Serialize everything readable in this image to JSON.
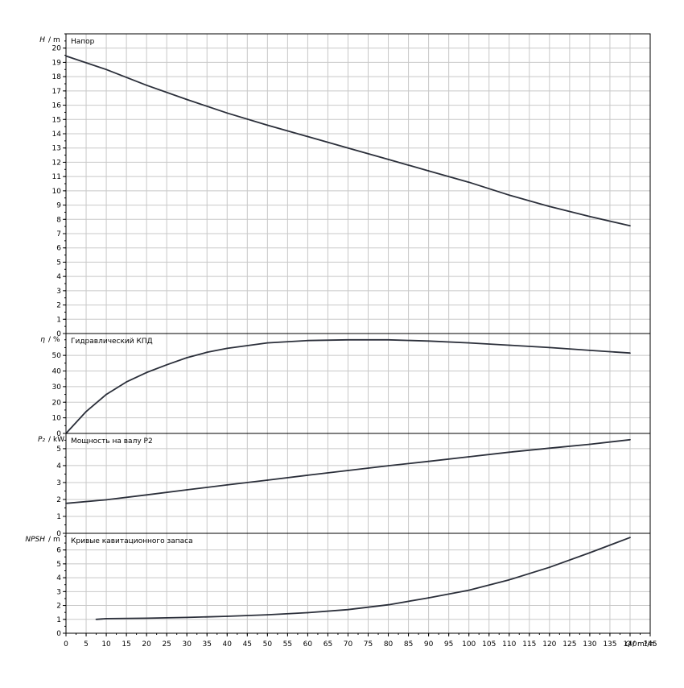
{
  "chart_data": [
    {
      "type": "line",
      "title": "Напор",
      "ylabel_var": "H",
      "ylabel_unit": "m",
      "xlim": [
        0,
        145
      ],
      "ylim": [
        0,
        21
      ],
      "yticks": [
        0,
        1,
        2,
        3,
        4,
        5,
        6,
        7,
        8,
        9,
        10,
        11,
        12,
        13,
        14,
        15,
        16,
        17,
        18,
        19,
        20
      ],
      "grid": true,
      "series": [
        {
          "x": [
            0,
            10,
            20,
            30,
            40,
            50,
            60,
            70,
            80,
            90,
            100,
            110,
            120,
            130,
            140
          ],
          "values": [
            19.45,
            18.5,
            17.4,
            16.4,
            15.45,
            14.6,
            13.8,
            13.0,
            12.2,
            11.4,
            10.6,
            9.7,
            8.9,
            8.2,
            7.55
          ]
        }
      ]
    },
    {
      "type": "line",
      "title": "Гидравлический КПД",
      "ylabel_var": "η",
      "ylabel_unit": "%",
      "xlim": [
        0,
        145
      ],
      "ylim": [
        0,
        64
      ],
      "yticks": [
        0,
        10,
        20,
        30,
        40,
        50
      ],
      "grid": true,
      "series": [
        {
          "x": [
            0,
            5,
            10,
            15,
            20,
            25,
            30,
            35,
            40,
            50,
            60,
            70,
            80,
            90,
            100,
            110,
            120,
            130,
            140
          ],
          "values": [
            0,
            14,
            25,
            33,
            39,
            44,
            48.5,
            52,
            54.5,
            58,
            59.5,
            60,
            60,
            59.2,
            58,
            56.5,
            55,
            53.2,
            51.5
          ]
        }
      ]
    },
    {
      "type": "line",
      "title": "Мощность на валу P2",
      "ylabel_var": "P₂",
      "ylabel_unit": "kW",
      "xlim": [
        0,
        145
      ],
      "ylim": [
        0,
        5.9
      ],
      "yticks": [
        0,
        1,
        2,
        3,
        4,
        5
      ],
      "grid": true,
      "series": [
        {
          "x": [
            0,
            10,
            20,
            30,
            40,
            50,
            60,
            70,
            80,
            90,
            100,
            110,
            120,
            130,
            140
          ],
          "values": [
            1.77,
            1.98,
            2.27,
            2.57,
            2.86,
            3.14,
            3.43,
            3.71,
            3.99,
            4.25,
            4.52,
            4.79,
            5.03,
            5.26,
            5.53
          ]
        }
      ]
    },
    {
      "type": "line",
      "title": "Кривые кавитационного запаса",
      "ylabel_var": "NPSH",
      "ylabel_unit": "m",
      "xlim": [
        0,
        145
      ],
      "ylim": [
        0,
        7.2
      ],
      "yticks": [
        0,
        1,
        2,
        3,
        4,
        5,
        6
      ],
      "xticks": [
        0,
        5,
        10,
        15,
        20,
        25,
        30,
        35,
        40,
        45,
        50,
        55,
        60,
        65,
        70,
        75,
        80,
        85,
        90,
        95,
        100,
        105,
        110,
        115,
        120,
        125,
        130,
        135,
        140,
        145
      ],
      "xlabel_var": "Q",
      "xlabel_unit": "m³/h",
      "grid": true,
      "series": [
        {
          "x": [
            7.5,
            10,
            20,
            30,
            40,
            50,
            60,
            70,
            80,
            90,
            100,
            110,
            120,
            130,
            140
          ],
          "values": [
            1.0,
            1.05,
            1.08,
            1.14,
            1.22,
            1.33,
            1.48,
            1.7,
            2.05,
            2.55,
            3.1,
            3.85,
            4.75,
            5.8,
            6.9
          ]
        }
      ]
    }
  ]
}
